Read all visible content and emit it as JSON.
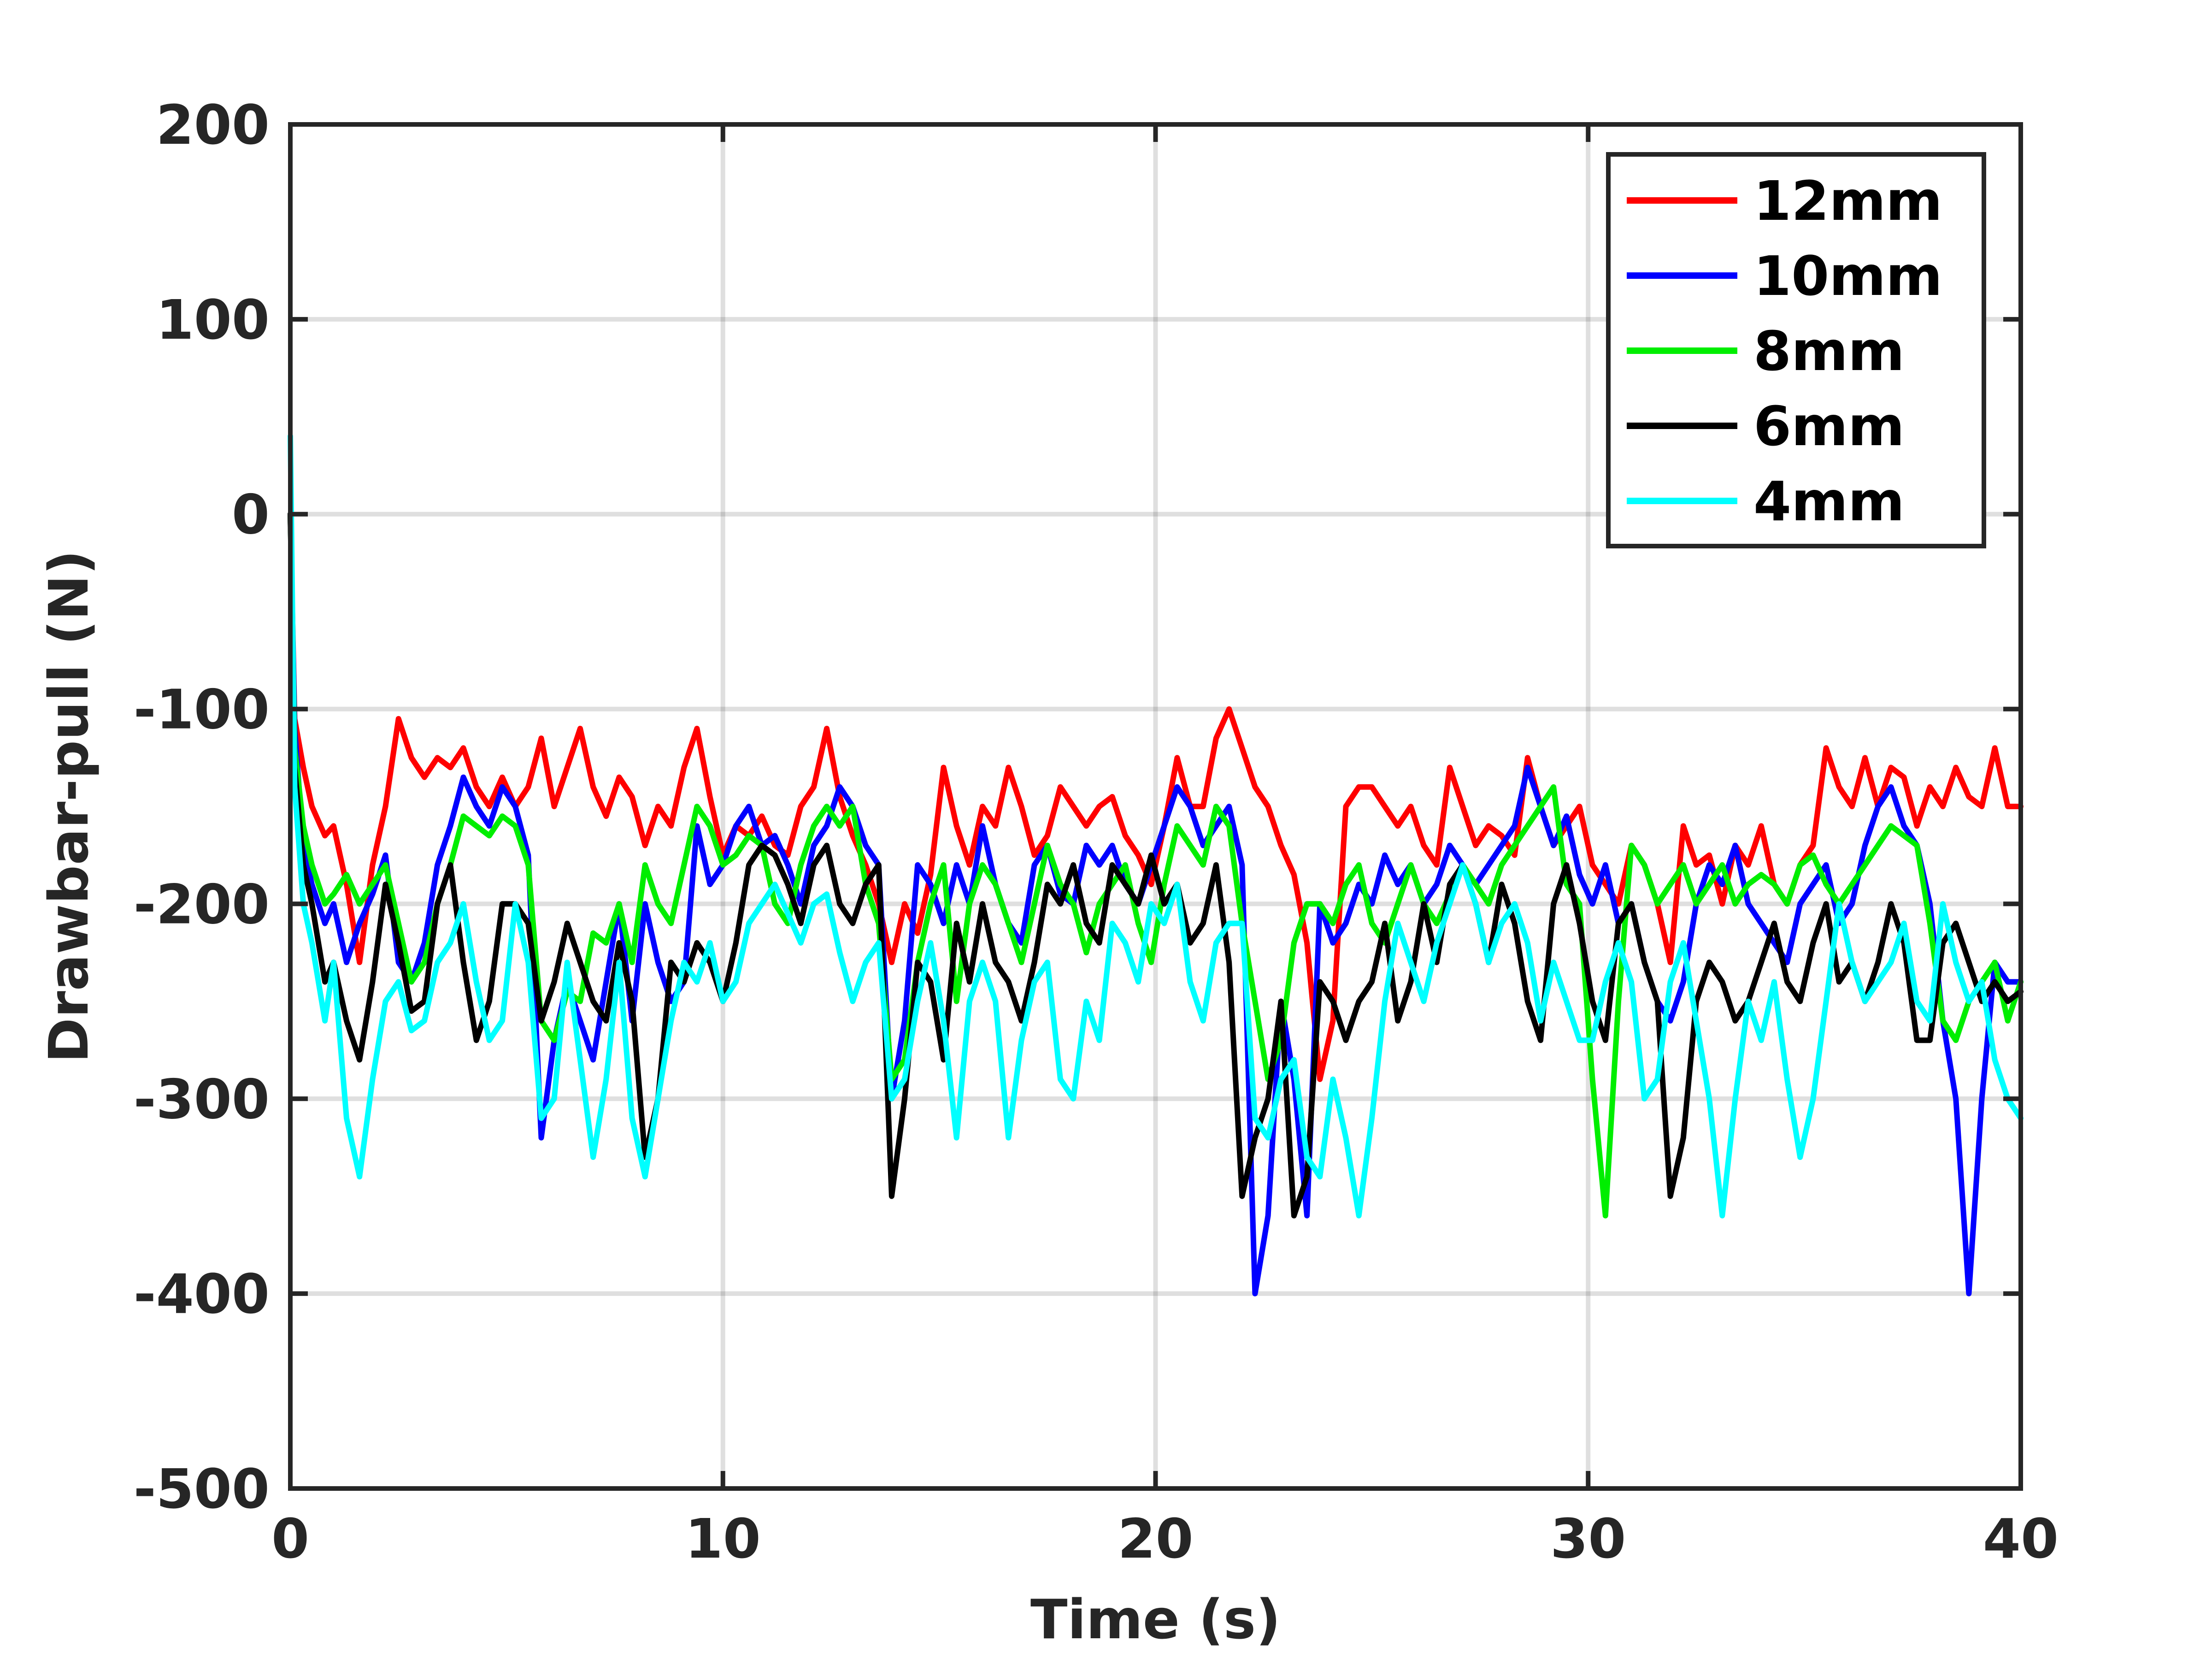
{
  "chart_data": {
    "type": "line",
    "title": "",
    "xlabel": "Time (s)",
    "ylabel": "Drawbar-pull (N)",
    "xlim": [
      0,
      40
    ],
    "ylim": [
      -500,
      200
    ],
    "xticks": [
      0,
      10,
      20,
      30,
      40
    ],
    "yticks": [
      -500,
      -400,
      -300,
      -200,
      -100,
      0,
      100,
      200
    ],
    "grid": true,
    "legend_position": "top-right",
    "x": [
      0,
      0.1,
      0.3,
      0.5,
      0.8,
      1.0,
      1.3,
      1.6,
      1.9,
      2.2,
      2.5,
      2.8,
      3.1,
      3.4,
      3.7,
      4.0,
      4.3,
      4.6,
      4.9,
      5.2,
      5.5,
      5.8,
      6.1,
      6.4,
      6.7,
      7.0,
      7.3,
      7.6,
      7.9,
      8.2,
      8.5,
      8.8,
      9.1,
      9.4,
      9.7,
      10.0,
      10.3,
      10.6,
      10.9,
      11.2,
      11.5,
      11.8,
      12.1,
      12.4,
      12.7,
      13.0,
      13.3,
      13.6,
      13.9,
      14.2,
      14.5,
      14.8,
      15.1,
      15.4,
      15.7,
      16.0,
      16.3,
      16.6,
      16.9,
      17.2,
      17.5,
      17.8,
      18.1,
      18.4,
      18.7,
      19.0,
      19.3,
      19.6,
      19.9,
      20.2,
      20.5,
      20.8,
      21.1,
      21.4,
      21.7,
      22.0,
      22.3,
      22.6,
      22.9,
      23.2,
      23.5,
      23.8,
      24.1,
      24.4,
      24.7,
      25.0,
      25.3,
      25.6,
      25.9,
      26.2,
      26.5,
      26.8,
      27.1,
      27.4,
      27.7,
      28.0,
      28.3,
      28.6,
      28.9,
      29.2,
      29.5,
      29.8,
      30.1,
      30.4,
      30.7,
      31.0,
      31.3,
      31.6,
      31.9,
      32.2,
      32.5,
      32.8,
      33.1,
      33.4,
      33.7,
      34.0,
      34.3,
      34.6,
      34.9,
      35.2,
      35.5,
      35.8,
      36.1,
      36.4,
      36.7,
      37.0,
      37.3,
      37.6,
      37.9,
      38.2,
      38.5,
      38.8,
      39.1,
      39.4,
      39.7,
      40.0
    ],
    "series": [
      {
        "name": "12mm",
        "color": "#ff0000",
        "values": [
          0,
          -105,
          -130,
          -150,
          -165,
          -160,
          -190,
          -230,
          -180,
          -150,
          -105,
          -125,
          -135,
          -125,
          -130,
          -120,
          -140,
          -150,
          -135,
          -150,
          -140,
          -115,
          -150,
          -130,
          -110,
          -140,
          -155,
          -135,
          -145,
          -170,
          -150,
          -160,
          -130,
          -110,
          -145,
          -175,
          -160,
          -165,
          -155,
          -170,
          -175,
          -150,
          -140,
          -110,
          -145,
          -165,
          -180,
          -200,
          -230,
          -200,
          -215,
          -185,
          -130,
          -160,
          -180,
          -150,
          -160,
          -130,
          -150,
          -175,
          -165,
          -140,
          -150,
          -160,
          -150,
          -145,
          -165,
          -175,
          -190,
          -160,
          -125,
          -150,
          -150,
          -115,
          -100,
          -120,
          -140,
          -150,
          -170,
          -185,
          -220,
          -290,
          -260,
          -150,
          -140,
          -140,
          -150,
          -160,
          -150,
          -170,
          -180,
          -130,
          -150,
          -170,
          -160,
          -165,
          -175,
          -125,
          -150,
          -170,
          -160,
          -150,
          -180,
          -190,
          -200,
          -170,
          -180,
          -200,
          -230,
          -160,
          -180,
          -175,
          -200,
          -170,
          -180,
          -160,
          -190,
          -200,
          -180,
          -170,
          -120,
          -140,
          -150,
          -125,
          -150,
          -130,
          -135,
          -160,
          -140,
          -150,
          -130,
          -145,
          -150,
          -120,
          -150,
          -150
        ]
      },
      {
        "name": "10mm",
        "color": "#0000ff",
        "values": [
          0,
          -110,
          -170,
          -190,
          -210,
          -200,
          -230,
          -210,
          -195,
          -175,
          -230,
          -240,
          -220,
          -180,
          -160,
          -135,
          -150,
          -160,
          -140,
          -150,
          -175,
          -320,
          -270,
          -240,
          -260,
          -280,
          -240,
          -200,
          -260,
          -200,
          -230,
          -250,
          -240,
          -160,
          -190,
          -180,
          -160,
          -150,
          -170,
          -165,
          -180,
          -200,
          -170,
          -160,
          -140,
          -150,
          -170,
          -180,
          -300,
          -260,
          -180,
          -190,
          -210,
          -180,
          -200,
          -160,
          -190,
          -210,
          -220,
          -180,
          -170,
          -195,
          -200,
          -170,
          -180,
          -170,
          -190,
          -200,
          -180,
          -160,
          -140,
          -150,
          -170,
          -160,
          -150,
          -180,
          -400,
          -360,
          -250,
          -290,
          -360,
          -200,
          -220,
          -210,
          -190,
          -200,
          -175,
          -190,
          -180,
          -200,
          -190,
          -170,
          -180,
          -190,
          -180,
          -170,
          -160,
          -130,
          -150,
          -170,
          -155,
          -185,
          -200,
          -180,
          -210,
          -200,
          -230,
          -250,
          -260,
          -240,
          -200,
          -180,
          -190,
          -170,
          -200,
          -210,
          -220,
          -230,
          -200,
          -190,
          -180,
          -210,
          -200,
          -170,
          -150,
          -140,
          -160,
          -170,
          -200,
          -260,
          -300,
          -400,
          -300,
          -230,
          -240,
          -240
        ]
      },
      {
        "name": "8mm",
        "color": "#00ee00",
        "values": [
          0,
          -120,
          -160,
          -180,
          -200,
          -195,
          -185,
          -200,
          -190,
          -180,
          -210,
          -240,
          -230,
          -200,
          -180,
          -155,
          -160,
          -165,
          -155,
          -160,
          -180,
          -260,
          -270,
          -245,
          -250,
          -215,
          -220,
          -200,
          -230,
          -180,
          -200,
          -210,
          -180,
          -150,
          -160,
          -180,
          -175,
          -165,
          -170,
          -200,
          -210,
          -180,
          -160,
          -150,
          -160,
          -150,
          -190,
          -210,
          -290,
          -280,
          -230,
          -200,
          -180,
          -250,
          -200,
          -180,
          -190,
          -210,
          -230,
          -200,
          -170,
          -190,
          -200,
          -225,
          -200,
          -190,
          -180,
          -210,
          -230,
          -190,
          -160,
          -170,
          -180,
          -150,
          -160,
          -210,
          -250,
          -290,
          -270,
          -220,
          -200,
          -200,
          -210,
          -190,
          -180,
          -210,
          -220,
          -200,
          -180,
          -200,
          -210,
          -195,
          -180,
          -190,
          -200,
          -180,
          -170,
          -160,
          -150,
          -140,
          -190,
          -200,
          -290,
          -360,
          -250,
          -170,
          -180,
          -200,
          -190,
          -180,
          -200,
          -190,
          -180,
          -200,
          -190,
          -185,
          -190,
          -200,
          -180,
          -175,
          -190,
          -200,
          -190,
          -180,
          -170,
          -160,
          -165,
          -170,
          -210,
          -260,
          -270,
          -250,
          -240,
          -230,
          -260,
          -240
        ]
      },
      {
        "name": "6mm",
        "color": "#000000",
        "values": [
          0,
          -130,
          -180,
          -200,
          -240,
          -230,
          -260,
          -280,
          -240,
          -190,
          -220,
          -255,
          -250,
          -200,
          -180,
          -230,
          -270,
          -250,
          -200,
          -200,
          -210,
          -260,
          -240,
          -210,
          -230,
          -250,
          -260,
          -220,
          -250,
          -330,
          -300,
          -230,
          -240,
          -220,
          -230,
          -250,
          -220,
          -180,
          -170,
          -175,
          -190,
          -210,
          -180,
          -170,
          -200,
          -210,
          -190,
          -180,
          -350,
          -300,
          -230,
          -240,
          -280,
          -210,
          -240,
          -200,
          -230,
          -240,
          -260,
          -230,
          -190,
          -200,
          -180,
          -210,
          -220,
          -180,
          -190,
          -200,
          -175,
          -200,
          -190,
          -220,
          -210,
          -180,
          -230,
          -350,
          -320,
          -300,
          -250,
          -360,
          -340,
          -240,
          -250,
          -270,
          -250,
          -240,
          -210,
          -260,
          -240,
          -200,
          -230,
          -190,
          -180,
          -200,
          -230,
          -190,
          -210,
          -250,
          -270,
          -200,
          -180,
          -210,
          -250,
          -270,
          -210,
          -200,
          -230,
          -250,
          -350,
          -320,
          -250,
          -230,
          -240,
          -260,
          -250,
          -230,
          -210,
          -240,
          -250,
          -220,
          -200,
          -240,
          -230,
          -250,
          -230,
          -200,
          -220,
          -270,
          -270,
          -220,
          -210,
          -230,
          -250,
          -240,
          -250,
          -245
        ]
      },
      {
        "name": "4mm",
        "color": "#00ffff",
        "values": [
          40,
          -140,
          -200,
          -220,
          -260,
          -230,
          -310,
          -340,
          -290,
          -250,
          -240,
          -265,
          -260,
          -230,
          -220,
          -200,
          -240,
          -270,
          -260,
          -200,
          -230,
          -310,
          -300,
          -230,
          -280,
          -330,
          -290,
          -230,
          -310,
          -340,
          -300,
          -260,
          -230,
          -240,
          -220,
          -250,
          -240,
          -210,
          -200,
          -190,
          -205,
          -220,
          -200,
          -195,
          -225,
          -250,
          -230,
          -220,
          -300,
          -290,
          -250,
          -220,
          -260,
          -320,
          -250,
          -230,
          -250,
          -320,
          -270,
          -240,
          -230,
          -290,
          -300,
          -250,
          -270,
          -210,
          -220,
          -240,
          -200,
          -210,
          -190,
          -240,
          -260,
          -220,
          -210,
          -210,
          -310,
          -320,
          -290,
          -280,
          -330,
          -340,
          -290,
          -320,
          -360,
          -310,
          -250,
          -210,
          -230,
          -250,
          -220,
          -200,
          -180,
          -200,
          -230,
          -210,
          -200,
          -220,
          -260,
          -230,
          -250,
          -270,
          -270,
          -240,
          -220,
          -240,
          -300,
          -290,
          -240,
          -220,
          -260,
          -300,
          -360,
          -300,
          -250,
          -270,
          -240,
          -290,
          -330,
          -300,
          -250,
          -200,
          -230,
          -250,
          -240,
          -230,
          -210,
          -250,
          -260,
          -200,
          -230,
          -250,
          -240,
          -280,
          -300,
          -310
        ]
      }
    ]
  }
}
